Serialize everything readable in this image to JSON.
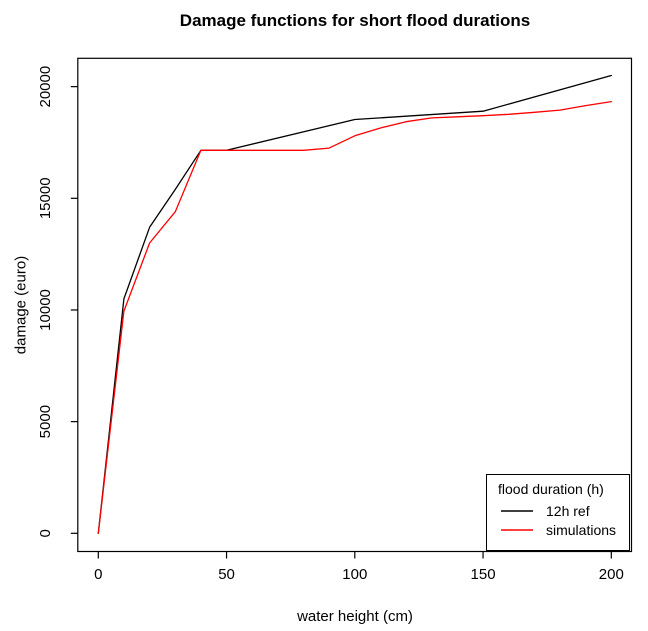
{
  "chart_data": {
    "type": "line",
    "title": "Damage functions for short flood durations",
    "xlabel": "water height (cm)",
    "ylabel": "damage (euro)",
    "x_ticks": [
      0,
      50,
      100,
      150,
      200
    ],
    "y_ticks": [
      0,
      5000,
      10000,
      15000,
      20000
    ],
    "xlim": [
      -8,
      208
    ],
    "ylim": [
      -900,
      21300
    ],
    "grid": false,
    "legend": {
      "title": "flood duration (h)",
      "position": "bottom-right",
      "entries": [
        {
          "label": "12h ref",
          "color": "#000000"
        },
        {
          "label": "simulations",
          "color": "#ff0000"
        }
      ]
    },
    "series": [
      {
        "name": "12h ref",
        "color": "#000000",
        "x": [
          0,
          10,
          20,
          30,
          40,
          50,
          100,
          150,
          200
        ],
        "y": [
          0,
          10500,
          13700,
          15400,
          17150,
          17150,
          18530,
          18900,
          20500
        ]
      },
      {
        "name": "simulations",
        "color": "#ff0000",
        "x": [
          0,
          10,
          20,
          30,
          40,
          50,
          60,
          70,
          80,
          90,
          100,
          110,
          120,
          130,
          140,
          150,
          160,
          170,
          180,
          190,
          200
        ],
        "y": [
          0,
          9950,
          13000,
          14400,
          17150,
          17150,
          17150,
          17150,
          17150,
          17250,
          17800,
          18150,
          18430,
          18600,
          18650,
          18700,
          18760,
          18850,
          18950,
          19150,
          19330
        ]
      }
    ]
  }
}
